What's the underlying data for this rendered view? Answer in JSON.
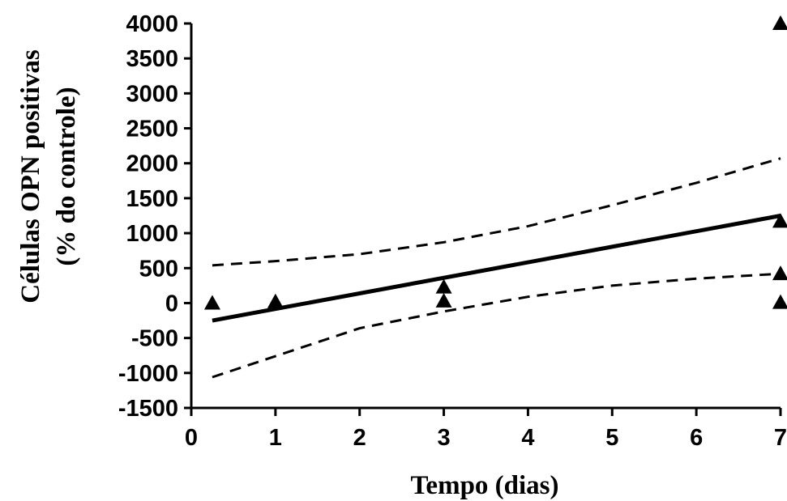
{
  "chart_data": {
    "type": "scatter",
    "xlabel": "Tempo (dias)",
    "ylabel_line1": "Células OPN positivas",
    "ylabel_line2": "(% do controle)",
    "xlim": [
      0,
      7
    ],
    "ylim": [
      -1500,
      4000
    ],
    "xticks": [
      0,
      1,
      2,
      3,
      4,
      5,
      6,
      7
    ],
    "yticks": [
      4000,
      3500,
      3000,
      2500,
      2000,
      1500,
      1000,
      500,
      0,
      -500,
      -1000,
      -1500
    ],
    "points": [
      {
        "x": 0.25,
        "y": 0
      },
      {
        "x": 1,
        "y": 20
      },
      {
        "x": 3,
        "y": 230
      },
      {
        "x": 3,
        "y": 30
      },
      {
        "x": 7,
        "y": 4000
      },
      {
        "x": 7,
        "y": 1170
      },
      {
        "x": 7,
        "y": 420
      },
      {
        "x": 7,
        "y": 10
      }
    ],
    "regression_line": {
      "x": [
        0.25,
        7
      ],
      "y": [
        -250,
        1250
      ]
    },
    "ci_upper": {
      "x": [
        0.25,
        1,
        2,
        3,
        4,
        5,
        6,
        7
      ],
      "y": [
        540,
        600,
        700,
        870,
        1100,
        1400,
        1720,
        2070
      ]
    },
    "ci_lower": {
      "x": [
        0.25,
        1,
        2,
        3,
        4,
        5,
        6,
        7
      ],
      "y": [
        -1060,
        -760,
        -360,
        -120,
        90,
        250,
        350,
        420
      ]
    },
    "colors": {
      "ink": "#000000",
      "background": "#ffffff"
    }
  }
}
